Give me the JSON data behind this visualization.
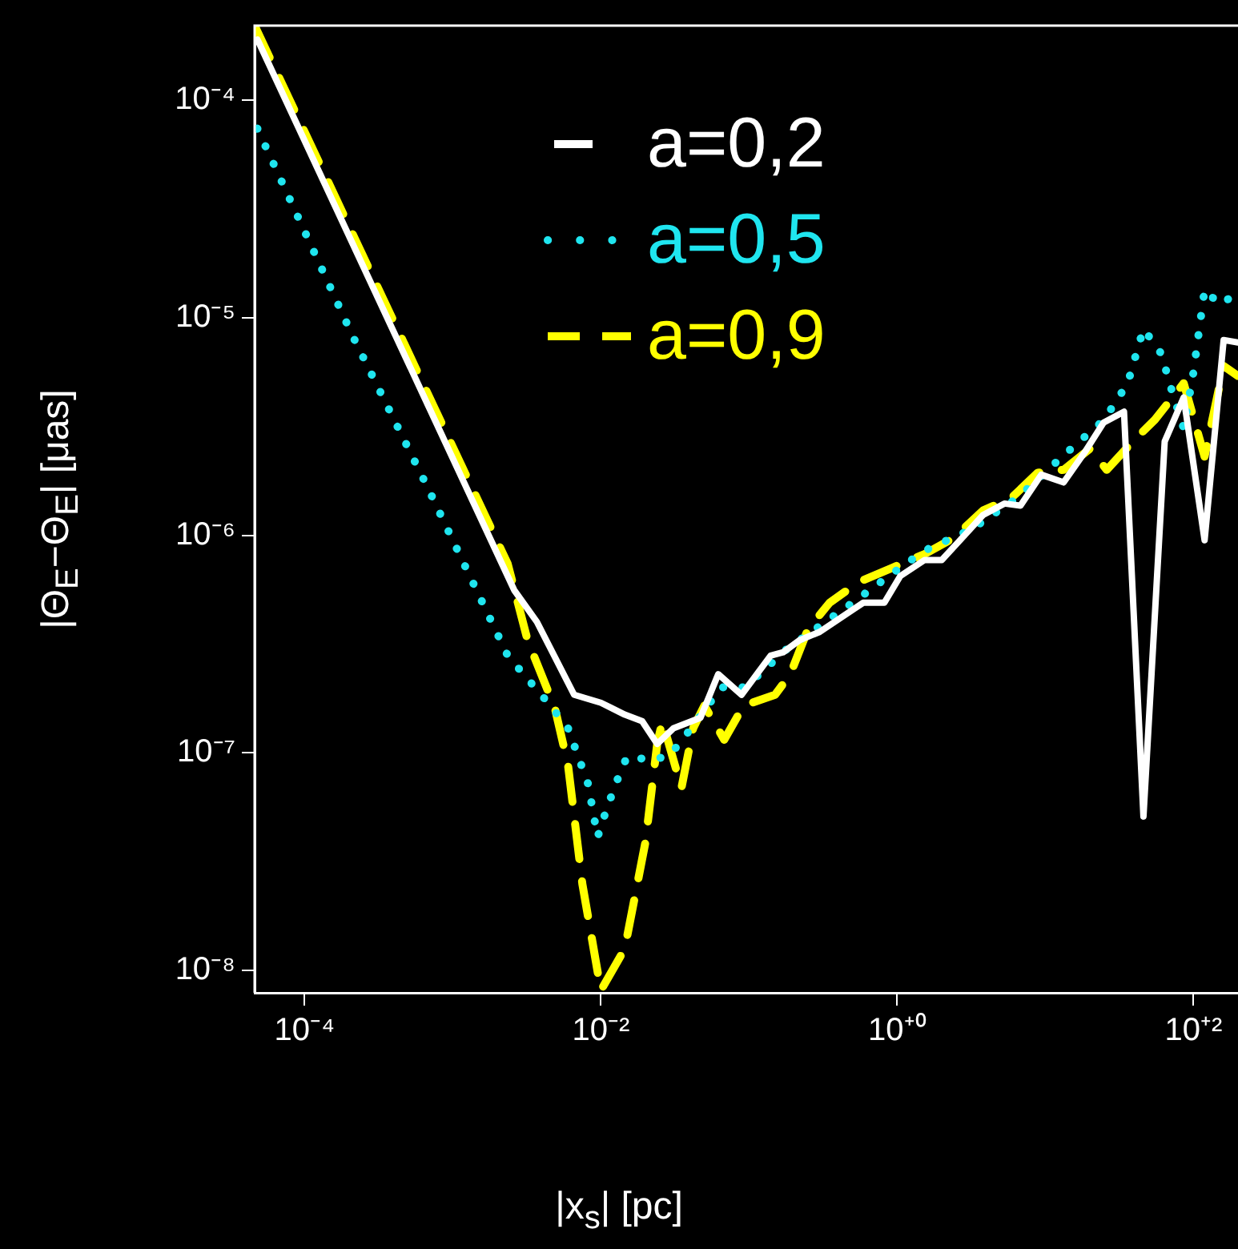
{
  "chart_data": {
    "type": "line",
    "xlabel": "|x$_{s}$| [pc]",
    "ylabel": "|Θ$_{E}$−Θ$_{E}$| [μas]",
    "log": "xy",
    "grid": false,
    "legend": "top",
    "marker": "none",
    "xlim": [
      4.6e-05,
      200
    ],
    "ylim": [
      7.9e-09,
      0.00022
    ],
    "xticks": [
      {
        "value": 0.0001,
        "label": "10⁻⁴"
      },
      {
        "value": 0.01,
        "label": "10⁻²"
      },
      {
        "value": 1,
        "label": "10⁺⁰"
      },
      {
        "value": 100,
        "label": "10⁺²"
      }
    ],
    "yticks": [
      {
        "value": 1e-08,
        "label": "10⁻⁸"
      },
      {
        "value": 1e-07,
        "label": "10⁻⁷"
      },
      {
        "value": 1e-06,
        "label": "10⁻⁶"
      },
      {
        "value": 1e-05,
        "label": "10⁻⁵"
      },
      {
        "value": 0.0001,
        "label": "10⁻⁴"
      }
    ],
    "series": [
      {
        "name": "a=0,2",
        "color": "#ffffff",
        "line_style": "solid",
        "x": [
          4.8e-05,
          0.0026,
          0.0037,
          0.0066,
          0.01,
          0.0145,
          0.019,
          0.024,
          0.031,
          0.047,
          0.062,
          0.089,
          0.14,
          0.17,
          0.22,
          0.3,
          0.59,
          0.82,
          1.05,
          1.53,
          2.0,
          2.85,
          3.8,
          5.3,
          6.8,
          9.4,
          13.3,
          18.4,
          24.8,
          34,
          46,
          64,
          86,
          119,
          160,
          200
        ],
        "values": [
          0.00019,
          5.6e-07,
          4e-07,
          1.85e-07,
          1.7e-07,
          1.5e-07,
          1.4e-07,
          1.1e-07,
          1.3e-07,
          1.45e-07,
          2.3e-07,
          1.85e-07,
          2.8e-07,
          2.9e-07,
          3.3e-07,
          3.6e-07,
          4.9e-07,
          4.9e-07,
          6.5e-07,
          7.7e-07,
          7.7e-07,
          1e-06,
          1.24e-06,
          1.4e-06,
          1.37e-06,
          1.9e-06,
          1.75e-06,
          2.4e-06,
          3.3e-06,
          3.7e-06,
          5.1e-08,
          2.7e-06,
          4.3e-06,
          9.5e-07,
          7.9e-06,
          7.7e-06
        ]
      },
      {
        "name": "a=0,5",
        "color": "#1fe5ef",
        "line_style": "dotted",
        "x": [
          4.8e-05,
          0.00021,
          0.00068,
          0.00235,
          0.0044,
          0.006,
          0.0082,
          0.0095,
          0.011,
          0.013,
          0.015,
          0.022,
          0.029,
          0.039,
          0.065,
          0.094,
          0.18,
          0.5,
          1.05,
          1.53,
          3.2,
          6.6,
          13,
          25,
          36,
          46,
          61,
          69,
          86,
          100,
          119,
          150,
          200
        ],
        "values": [
          7.4e-05,
          8.3e-06,
          1.65e-06,
          2.8e-07,
          1.7e-07,
          1.3e-07,
          7.2e-08,
          4.1e-08,
          5.6e-08,
          7.6e-08,
          9.6e-08,
          9.3e-08,
          9.7e-08,
          1.25e-07,
          2e-07,
          2e-07,
          3e-07,
          4.9e-07,
          7.1e-07,
          8.5e-07,
          1.07e-06,
          1.5e-06,
          2.3e-06,
          3.4e-06,
          5e-06,
          8.9e-06,
          6.8e-06,
          5e-06,
          3.1e-06,
          5.6e-06,
          1.35e-05,
          1.15e-05,
          1.3e-05
        ]
      },
      {
        "name": "a=0,9",
        "color": "#ffff00",
        "line_style": "dashed",
        "x": [
          4.6e-05,
          0.00235,
          0.0032,
          0.0049,
          0.006,
          0.0075,
          0.01,
          0.0145,
          0.02,
          0.024,
          0.026,
          0.035,
          0.042,
          0.05,
          0.068,
          0.092,
          0.15,
          0.19,
          0.25,
          0.35,
          0.55,
          0.93,
          1.53,
          2.4,
          3.8,
          6.0,
          8.9,
          13.3,
          20,
          26,
          39,
          55,
          86,
          119,
          160,
          200
        ],
        "values": [
          0.00022,
          7.4e-07,
          3.3e-07,
          1.6e-07,
          8.8e-08,
          2.5e-08,
          8.1e-09,
          1.26e-08,
          3.9e-08,
          1.1e-07,
          1.4e-07,
          6.9e-08,
          1.3e-07,
          1.65e-07,
          1.15e-07,
          1.65e-07,
          1.85e-07,
          2.3e-07,
          3.7e-07,
          4.9e-07,
          6.1e-07,
          7.1e-07,
          8.2e-07,
          9.7e-07,
          1.3e-06,
          1.5e-06,
          1.94e-06,
          2e-06,
          2.5e-06,
          2e-06,
          2.7e-06,
          3.4e-06,
          5e-06,
          2.3e-06,
          6e-06,
          5.4e-06
        ]
      }
    ]
  }
}
